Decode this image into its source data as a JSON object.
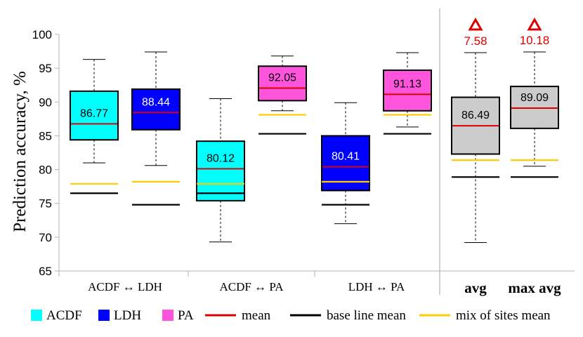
{
  "chart_data": {
    "type": "box",
    "ylabel": "Prediction accuracy, %",
    "ylim": [
      65,
      100
    ],
    "yticks": [
      65,
      70,
      75,
      80,
      85,
      90,
      95,
      100
    ],
    "grid": false,
    "groups": [
      {
        "label": "ACDF ↔ LDH",
        "bold": false
      },
      {
        "label": "ACDF ↔ PA",
        "bold": false
      },
      {
        "label": "LDH ↔ PA",
        "bold": false
      },
      {
        "label": "avg",
        "bold": true
      },
      {
        "label": "max avg",
        "bold": true
      }
    ],
    "series_legend": [
      {
        "name": "ACDF",
        "color": "#00ffff",
        "kind": "box"
      },
      {
        "name": "LDH",
        "color": "#0000ff",
        "kind": "box"
      },
      {
        "name": "PA",
        "color": "#ff55dd",
        "kind": "box"
      },
      {
        "name": "mean",
        "color": "#dd0000",
        "kind": "line"
      },
      {
        "name": "base line mean",
        "color": "#000000",
        "kind": "line"
      },
      {
        "name": "mix of sites mean",
        "color": "#ffcc00",
        "kind": "line"
      }
    ],
    "boxes": [
      {
        "group": 0,
        "slot": 0,
        "series": "ACDF",
        "whisker_low": 81.0,
        "q1": 84.4,
        "q3": 91.6,
        "whisker_high": 96.3,
        "mean": 86.77,
        "baseline_mean": 76.5,
        "mix_mean": 77.9,
        "label": "86.77",
        "label_color": "#000000"
      },
      {
        "group": 0,
        "slot": 1,
        "series": "LDH",
        "whisker_low": 80.6,
        "q1": 85.9,
        "q3": 91.9,
        "whisker_high": 97.4,
        "mean": 88.44,
        "baseline_mean": 74.8,
        "mix_mean": 78.2,
        "label": "88.44",
        "label_color": "#ffffff"
      },
      {
        "group": 1,
        "slot": 0,
        "series": "ACDF",
        "whisker_low": 69.3,
        "q1": 75.4,
        "q3": 84.2,
        "whisker_high": 90.5,
        "mean": 80.12,
        "baseline_mean": 76.5,
        "mix_mean": 77.9,
        "label": "80.12",
        "label_color": "#000000"
      },
      {
        "group": 1,
        "slot": 1,
        "series": "PA",
        "whisker_low": 88.7,
        "q1": 90.2,
        "q3": 95.3,
        "whisker_high": 96.8,
        "mean": 92.05,
        "baseline_mean": 85.3,
        "mix_mean": 88.1,
        "label": "92.05",
        "label_color": "#000000"
      },
      {
        "group": 2,
        "slot": 0,
        "series": "LDH",
        "whisker_low": 72.0,
        "q1": 76.9,
        "q3": 85.0,
        "whisker_high": 89.9,
        "mean": 80.41,
        "baseline_mean": 74.8,
        "mix_mean": 78.2,
        "label": "80.41",
        "label_color": "#ffffff"
      },
      {
        "group": 2,
        "slot": 1,
        "series": "PA",
        "whisker_low": 86.3,
        "q1": 88.7,
        "q3": 94.7,
        "whisker_high": 97.3,
        "mean": 91.13,
        "baseline_mean": 85.3,
        "mix_mean": 88.1,
        "label": "91.13",
        "label_color": "#000000"
      },
      {
        "group": 3,
        "slot": 0,
        "series": "avg",
        "whisker_low": 69.2,
        "q1": 82.3,
        "q3": 90.7,
        "whisker_high": 97.3,
        "mean": 86.49,
        "baseline_mean": 78.9,
        "mix_mean": 81.4,
        "label": "86.49",
        "label_color": "#000000",
        "gain": "7.58"
      },
      {
        "group": 4,
        "slot": 0,
        "series": "max avg",
        "whisker_low": 80.5,
        "q1": 86.1,
        "q3": 92.3,
        "whisker_high": 97.4,
        "mean": 89.09,
        "baseline_mean": 78.9,
        "mix_mean": 81.4,
        "label": "89.09",
        "label_color": "#000000",
        "gain": "10.18"
      }
    ],
    "colors": {
      "ACDF": "#00ffff",
      "LDH": "#0000ff",
      "PA": "#ff55dd",
      "avg": "#cccccc",
      "max avg": "#cccccc",
      "mean": "#dd0000",
      "baseline_mean": "#000000",
      "mix_mean": "#ffcc00",
      "gain": "#dd0000"
    }
  }
}
